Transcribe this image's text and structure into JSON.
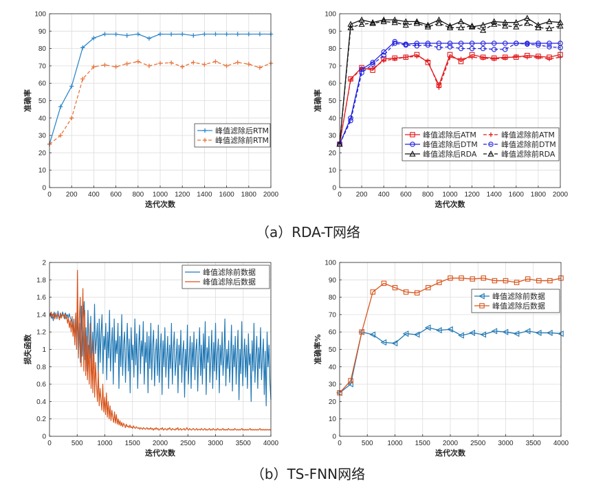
{
  "captions": {
    "a": "（a）RDA-T网络",
    "b": "（b）TS-FNN网络"
  },
  "colors": {
    "blue": "#2f87c9",
    "orange": "#e8743b",
    "red": "#e31a1c",
    "pureblue": "#1f1fe0",
    "black": "#111111",
    "mblue": "#1f77b4",
    "morange": "#d95319"
  },
  "chart_data": [
    {
      "id": "c1",
      "type": "line",
      "xlabel": "迭代次数",
      "ylabel": "准确率",
      "xlim": [
        0,
        2000
      ],
      "ylim": [
        0,
        100
      ],
      "xticks": [
        0,
        200,
        400,
        600,
        800,
        1000,
        1200,
        1400,
        1600,
        1800,
        2000
      ],
      "yticks": [
        0,
        10,
        20,
        30,
        40,
        50,
        60,
        70,
        80,
        90,
        100
      ],
      "grid": true,
      "legend_position": "center-right",
      "x": [
        0,
        100,
        200,
        300,
        400,
        500,
        600,
        700,
        800,
        900,
        1000,
        1100,
        1200,
        1300,
        1400,
        1500,
        1600,
        1700,
        1800,
        1900,
        2000
      ],
      "series": [
        {
          "name": "峰值滤除后RTM",
          "color": "blue",
          "dash": "",
          "marker": "plus",
          "values": [
            25,
            46.5,
            58.3,
            80.5,
            86,
            88.3,
            88.2,
            87.5,
            88.3,
            85.8,
            88.3,
            88.2,
            88.3,
            87.5,
            88.3,
            88.3,
            88.3,
            88.3,
            88.3,
            88.3,
            88.3
          ]
        },
        {
          "name": "峰值滤除前RTM",
          "color": "orange",
          "dash": "5,3",
          "marker": "plus",
          "values": [
            25,
            30,
            40,
            62.5,
            69.5,
            70.5,
            69.5,
            71.2,
            72.5,
            70,
            71.5,
            71.8,
            69.5,
            72,
            70.8,
            72.5,
            70,
            72,
            71,
            69,
            71.5
          ]
        }
      ]
    },
    {
      "id": "c2",
      "type": "line",
      "xlabel": "迭代次数",
      "ylabel": "准确率",
      "xlim": [
        0,
        2000
      ],
      "ylim": [
        0,
        100
      ],
      "xticks": [
        0,
        200,
        400,
        600,
        800,
        1000,
        1200,
        1400,
        1600,
        1800,
        2000
      ],
      "yticks": [
        0,
        10,
        20,
        30,
        40,
        50,
        60,
        70,
        80,
        90,
        100
      ],
      "grid": true,
      "legend_position": "bottom-right",
      "x": [
        0,
        100,
        200,
        300,
        400,
        500,
        600,
        700,
        800,
        900,
        1000,
        1100,
        1200,
        1300,
        1400,
        1500,
        1600,
        1700,
        1800,
        1900,
        2000
      ],
      "series": [
        {
          "name": "峰值滤除后ATM",
          "color": "red",
          "dash": "",
          "marker": "square",
          "values": [
            25,
            62.5,
            69,
            67.5,
            74,
            74.5,
            75,
            76.5,
            72,
            59,
            76.5,
            72.5,
            76.5,
            75,
            74.5,
            75,
            75,
            76,
            75.5,
            75,
            76.5
          ]
        },
        {
          "name": "峰值滤除前ATM",
          "color": "red",
          "dash": "5,3",
          "marker": "plus",
          "values": [
            25,
            62,
            68.5,
            68.5,
            73,
            74,
            75,
            75.5,
            73,
            57.5,
            75,
            74,
            75,
            74.5,
            74,
            74.5,
            75.5,
            75,
            75,
            74,
            75
          ]
        },
        {
          "name": "峰值滤除后DTM",
          "color": "pureblue",
          "dash": "",
          "marker": "circle",
          "values": [
            25,
            40,
            68,
            72,
            78,
            84,
            82.5,
            83,
            83,
            83,
            83,
            83,
            83,
            83,
            83,
            83,
            83,
            83,
            83,
            83,
            83
          ]
        },
        {
          "name": "峰值滤除前DTM",
          "color": "pureblue",
          "dash": "5,3",
          "marker": "circle",
          "values": [
            25,
            38.5,
            66,
            71,
            76,
            83,
            82,
            81.5,
            82,
            80.5,
            81,
            80,
            80,
            80,
            79.5,
            79.5,
            83,
            82.5,
            82,
            81,
            80.5
          ]
        },
        {
          "name": "峰值滤除后RDA",
          "color": "black",
          "dash": "",
          "marker": "triangle",
          "values": [
            25,
            94,
            96.5,
            95,
            96.5,
            96.5,
            95.5,
            95.5,
            93.5,
            96.5,
            93,
            95.5,
            92.5,
            93.5,
            95.5,
            95,
            95,
            97.5,
            93.5,
            95.5,
            95
          ]
        },
        {
          "name": "峰值滤除前RDA",
          "color": "black",
          "dash": "5,3",
          "marker": "triangle",
          "values": [
            25,
            92,
            94,
            94.5,
            95.5,
            95,
            93.5,
            94.5,
            92.5,
            94.5,
            92,
            92,
            93,
            90.5,
            94,
            93,
            92.5,
            94.5,
            92,
            91.5,
            93
          ]
        }
      ]
    },
    {
      "id": "c3",
      "type": "line",
      "xlabel": "迭代次数",
      "ylabel": "损失函数",
      "xlim": [
        0,
        4000
      ],
      "ylim": [
        0,
        2
      ],
      "xticks": [
        0,
        500,
        1000,
        1500,
        2000,
        2500,
        3000,
        3500,
        4000
      ],
      "yticks": [
        0,
        0.2,
        0.4,
        0.6,
        0.8,
        1,
        1.2,
        1.4,
        1.6,
        1.8,
        2
      ],
      "grid": true,
      "legend_position": "top-right",
      "series": [
        {
          "name": "峰值滤除前数据",
          "color": "mblue",
          "dash": "",
          "marker": "none",
          "values": [
            1.38,
            1.42,
            1.36,
            1.4,
            1.33,
            1.43,
            1.37,
            1.4,
            1.35,
            1.44,
            1.38,
            1.36,
            1.41,
            1.37,
            1.43,
            1.39,
            1.35,
            1.42,
            1.38,
            1.4,
            1.36,
            1.41,
            1.37,
            1.34,
            1.29,
            1.22,
            1.35,
            1.1,
            1.38,
            1.0,
            1.45,
            0.95,
            1.3,
            0.85,
            1.5,
            0.92,
            1.35,
            1.55,
            0.88,
            1.25,
            0.75,
            1.45,
            1.05,
            0.9,
            1.38,
            0.8,
            1.2,
            0.78,
            1.52,
            0.95,
            1.1,
            1.3,
            0.7,
            1.35,
            0.85,
            1.18,
            1.4,
            0.72,
            1.15,
            1.0,
            1.3,
            0.65,
            1.2,
            0.9,
            1.45,
            0.75,
            1.05,
            1.25,
            0.6,
            1.35,
            0.85,
            1.1,
            0.95,
            1.3,
            0.55,
            1.15,
            0.8,
            1.4,
            0.7,
            1.05,
            1.2,
            0.62,
            1.0,
            1.3,
            0.75,
            1.12,
            0.5,
            1.25,
            0.88,
            1.05,
            0.68,
            1.35,
            0.82,
            1.18,
            0.55,
            1.02,
            1.28,
            0.72,
            1.1,
            0.92,
            1.32,
            0.6,
            1.08,
            0.85,
            1.2,
            0.5,
            1.15,
            0.78,
            1.3,
            0.65,
            1.05,
            1.22,
            0.58,
            0.95,
            1.12,
            0.7,
            1.28,
            0.62,
            0.98,
            1.18,
            0.48,
            1.1,
            0.8,
            1.25,
            0.68,
            0.92,
            1.15,
            0.55,
            1.05,
            0.78,
            1.3,
            0.6,
            1.0,
            1.2,
            0.7,
            0.88,
            1.12,
            0.5,
            1.05,
            0.82,
            1.22,
            0.62,
            0.95,
            1.1,
            0.45,
            1.0,
            0.75,
            1.28,
            0.6,
            0.9,
            1.15,
            0.55,
            1.08,
            0.8,
            1.2,
            0.65,
            0.98,
            1.12,
            0.52,
            0.92,
            1.25,
            0.7,
            1.05,
            0.6,
            1.18,
            0.78,
            1.32,
            0.48,
            1.02,
            0.85,
            1.15,
            0.62,
            0.9,
            1.22,
            0.55,
            1.08,
            0.75,
            1.3,
            0.65,
            0.95,
            1.12,
            0.5,
            1.05,
            0.82,
            1.2,
            0.7,
            0.92,
            1.35,
            0.58,
            1.0,
            0.78,
            1.1,
            0.62,
            0.88,
            1.28,
            0.52,
            1.05,
            0.8,
            1.15,
            0.6,
            0.95,
            1.22,
            0.42,
            1.0,
            0.72,
            1.32,
            0.58,
            0.88,
            1.12,
            0.68,
            1.05,
            0.55,
            1.18,
            0.82,
            0.95,
            0.4,
            1.1,
            0.75,
            1.3,
            0.62,
            0.92,
            1.15,
            0.55,
            1.02,
            0.78,
            1.25,
            0.65,
            0.9,
            1.12,
            0.48,
            0.98,
            0.35,
            1.2,
            0.8,
            1.05,
            0.62,
            0.42
          ]
        },
        {
          "name": "峰值滤除后数据",
          "color": "morange",
          "dash": "",
          "marker": "none",
          "values": [
            1.4,
            1.38,
            1.43,
            1.36,
            1.41,
            1.39,
            1.35,
            1.42,
            1.37,
            1.4,
            1.38,
            1.34,
            1.42,
            1.36,
            1.39,
            1.4,
            1.37,
            1.41,
            1.35,
            1.38,
            1.3,
            1.36,
            1.25,
            1.33,
            1.2,
            1.38,
            1.15,
            1.3,
            1.05,
            1.42,
            1.0,
            1.91,
            0.9,
            1.35,
            1.6,
            0.8,
            1.25,
            1.7,
            0.75,
            1.45,
            0.7,
            1.15,
            0.65,
            1.05,
            0.6,
            1.3,
            0.55,
            0.95,
            0.5,
            1.1,
            0.45,
            0.85,
            0.6,
            0.4,
            0.75,
            0.35,
            0.55,
            0.42,
            0.3,
            0.6,
            0.28,
            0.45,
            0.25,
            0.5,
            0.22,
            0.4,
            0.2,
            0.35,
            0.18,
            0.3,
            0.22,
            0.16,
            0.28,
            0.15,
            0.25,
            0.14,
            0.2,
            0.13,
            0.18,
            0.12,
            0.16,
            0.11,
            0.15,
            0.13,
            0.1,
            0.14,
            0.11,
            0.12,
            0.1,
            0.13,
            0.1,
            0.11,
            0.09,
            0.12,
            0.1,
            0.09,
            0.11,
            0.1,
            0.09,
            0.1,
            0.08,
            0.1,
            0.09,
            0.08,
            0.1,
            0.09,
            0.08,
            0.09,
            0.1,
            0.08,
            0.09,
            0.08,
            0.1,
            0.08,
            0.09,
            0.07,
            0.09,
            0.08,
            0.1,
            0.08,
            0.09,
            0.07,
            0.08,
            0.09,
            0.08,
            0.1,
            0.07,
            0.08,
            0.09,
            0.08,
            0.07,
            0.09,
            0.08,
            0.1,
            0.08,
            0.07,
            0.09,
            0.08,
            0.08,
            0.07,
            0.09,
            0.08,
            0.1,
            0.07,
            0.08,
            0.09,
            0.07,
            0.08,
            0.08,
            0.09,
            0.07,
            0.08,
            0.1,
            0.08,
            0.07,
            0.09,
            0.08,
            0.07,
            0.08,
            0.09,
            0.08,
            0.07,
            0.08,
            0.09,
            0.07,
            0.08,
            0.08,
            0.07,
            0.09,
            0.08,
            0.07,
            0.08,
            0.09,
            0.07,
            0.08,
            0.07,
            0.08,
            0.09,
            0.07,
            0.08,
            0.07,
            0.09,
            0.08,
            0.07,
            0.08,
            0.07,
            0.09,
            0.08,
            0.07,
            0.08,
            0.07,
            0.08,
            0.09,
            0.07,
            0.08,
            0.07,
            0.08,
            0.07,
            0.09,
            0.08,
            0.07,
            0.08,
            0.07,
            0.08,
            0.07,
            0.09,
            0.08,
            0.07,
            0.08,
            0.07,
            0.08,
            0.07,
            0.08,
            0.09,
            0.07,
            0.08,
            0.07,
            0.08,
            0.07,
            0.08,
            0.07,
            0.08,
            0.09,
            0.07,
            0.08,
            0.07,
            0.08,
            0.07,
            0.08,
            0.07,
            0.08,
            0.07,
            0.08,
            0.09,
            0.07,
            0.08,
            0.07,
            0.08,
            0.07,
            0.08,
            0.07,
            0.08,
            0.07,
            0.08,
            0.07,
            0.08
          ]
        }
      ]
    },
    {
      "id": "c4",
      "type": "line",
      "xlabel": "迭代次数",
      "ylabel": "准确率%",
      "xlim": [
        0,
        4000
      ],
      "ylim": [
        0,
        100
      ],
      "xticks": [
        0,
        500,
        1000,
        1500,
        2000,
        2500,
        3000,
        3500,
        4000
      ],
      "yticks": [
        0,
        10,
        20,
        30,
        40,
        50,
        60,
        70,
        80,
        90,
        100
      ],
      "grid": true,
      "legend_position": "center-right",
      "x": [
        0,
        200,
        400,
        600,
        800,
        1000,
        1200,
        1400,
        1600,
        1800,
        2000,
        2200,
        2400,
        2600,
        2800,
        3000,
        3200,
        3400,
        3600,
        3800,
        4000
      ],
      "series": [
        {
          "name": "峰值滤除前数据",
          "color": "mblue",
          "dash": "",
          "marker": "triangle-left",
          "values": [
            25,
            30,
            60,
            58.5,
            54,
            53.5,
            59,
            58.5,
            62.5,
            61,
            61.5,
            58,
            59.5,
            58.5,
            60.5,
            60,
            59,
            60.5,
            59.5,
            59.5,
            59
          ]
        },
        {
          "name": "峰值滤除后数据",
          "color": "morange",
          "dash": "",
          "marker": "square",
          "values": [
            25,
            32,
            60,
            83,
            88,
            85.5,
            83,
            82.5,
            85.5,
            88.5,
            91,
            91,
            90.5,
            91,
            89.5,
            89.5,
            88.5,
            90.5,
            89.5,
            89.5,
            91
          ]
        }
      ]
    }
  ]
}
